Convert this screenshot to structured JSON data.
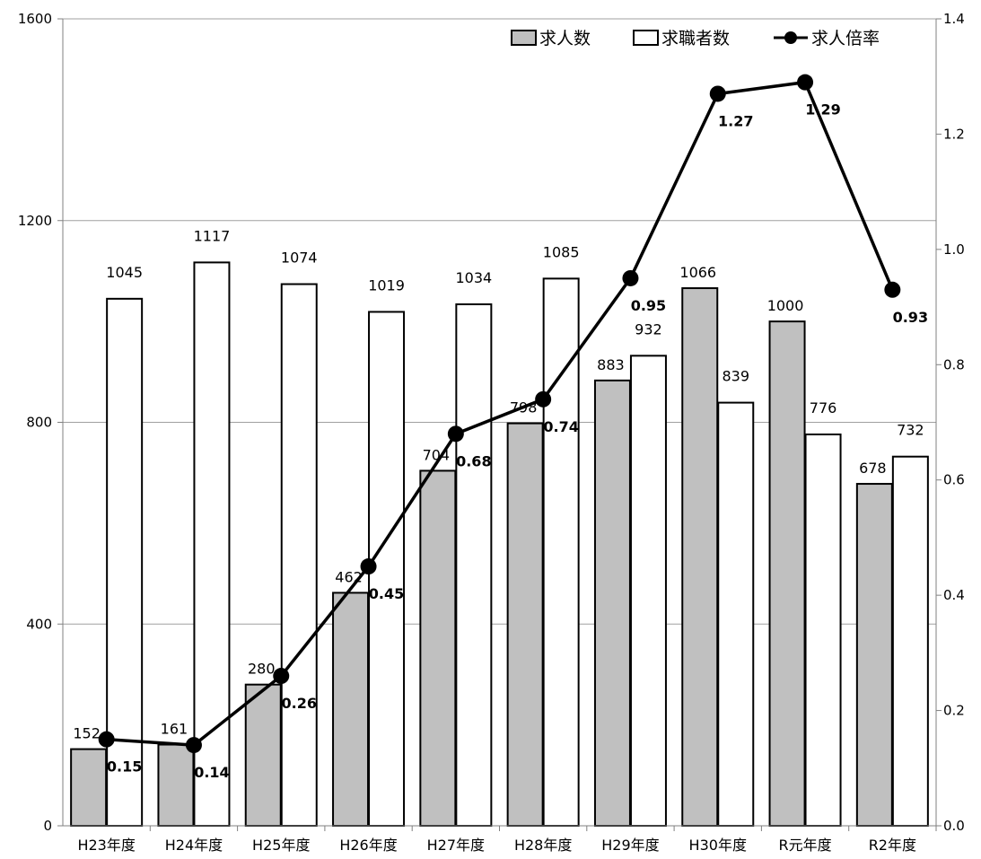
{
  "chart_data": {
    "type": "bar",
    "categories": [
      "H23年度",
      "H24年度",
      "H25年度",
      "H26年度",
      "H27年度",
      "H28年度",
      "H29年度",
      "H30年度",
      "R元年度",
      "R2年度"
    ],
    "series": [
      {
        "name": "求人数",
        "type": "bar",
        "axis": "left",
        "color": "#c0c0c0",
        "values": [
          152,
          161,
          280,
          462,
          704,
          798,
          883,
          1066,
          1000,
          678
        ]
      },
      {
        "name": "求職者数",
        "type": "bar",
        "axis": "left",
        "color": "#ffffff",
        "values": [
          1045,
          1117,
          1074,
          1019,
          1034,
          1085,
          932,
          839,
          776,
          732
        ]
      },
      {
        "name": "求人倍率",
        "type": "line",
        "axis": "right",
        "color": "#000000",
        "values": [
          0.15,
          0.14,
          0.26,
          0.45,
          0.68,
          0.74,
          0.95,
          1.27,
          1.29,
          0.93
        ]
      }
    ],
    "ratio_labels": [
      "0.15",
      "0.14",
      "0.26",
      "0.45",
      "0.68",
      "0.74",
      "0.95",
      "1.27",
      "1.29",
      "0.93"
    ],
    "ylim": [
      0,
      1600
    ],
    "yticks": [
      0,
      400,
      800,
      1200,
      1600
    ],
    "ylim_right": [
      0,
      1.4
    ],
    "yticks_right": [
      "0.0",
      "0.2",
      "0.4",
      "0.6",
      "0.8",
      "1.0",
      "1.2",
      "1.4"
    ],
    "grid": true,
    "legend_position": "top-right",
    "title": "",
    "xlabel": "",
    "ylabel": ""
  }
}
